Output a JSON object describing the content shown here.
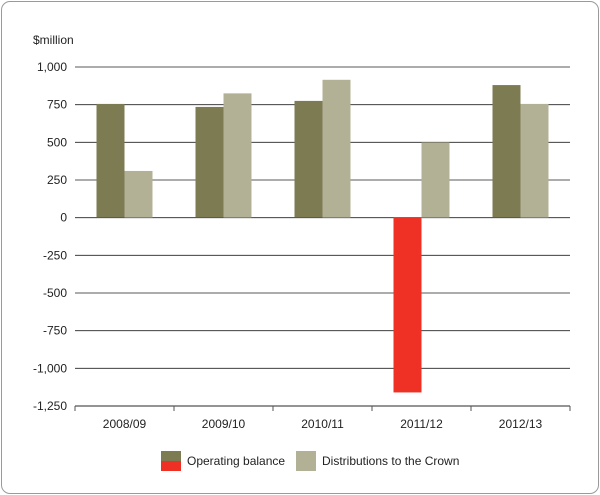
{
  "chart_data": {
    "type": "bar",
    "ylabel": "$million",
    "categories": [
      "2008/09",
      "2009/10",
      "2010/11",
      "2011/12",
      "2012/13"
    ],
    "series": [
      {
        "name": "Operating balance",
        "values": [
          755,
          735,
          775,
          -1160,
          880
        ],
        "color": "#7d7b52",
        "negative_color": "#ee3124"
      },
      {
        "name": "Distributions to the Crown",
        "values": [
          310,
          825,
          915,
          500,
          755
        ],
        "color": "#b3b195"
      }
    ],
    "ylim": [
      -1250,
      1000
    ],
    "yticks": [
      1000,
      750,
      500,
      250,
      0,
      -250,
      -500,
      -750,
      -1000,
      -1250
    ],
    "ytick_labels": [
      "1,000",
      "750",
      "500",
      "250",
      "0",
      "-250",
      "-500",
      "-750",
      "-1,000",
      "-1,250"
    ],
    "grid": true,
    "legend_position": "bottom"
  }
}
